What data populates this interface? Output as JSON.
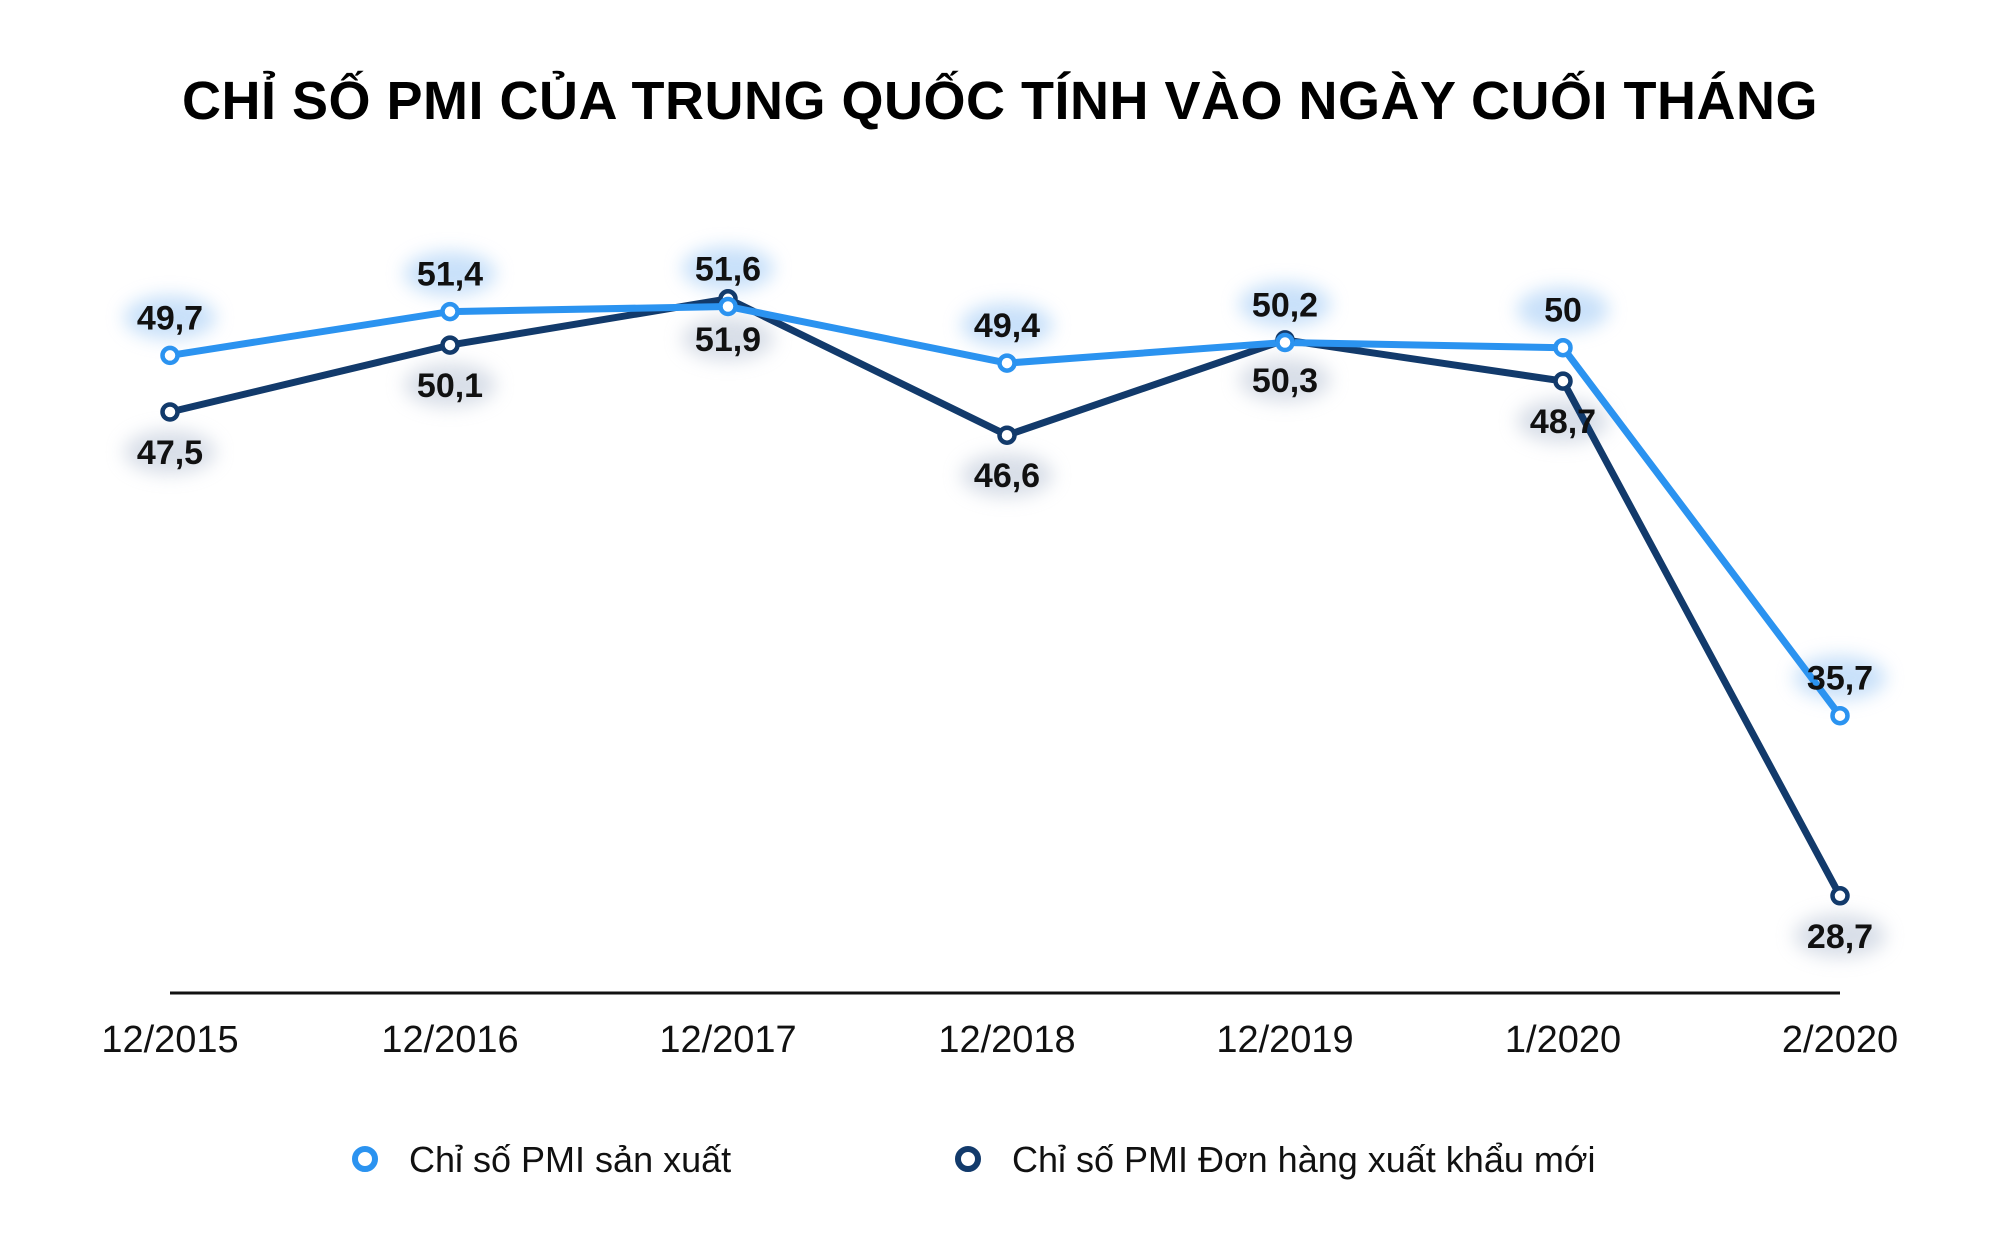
{
  "chart_data": {
    "type": "line",
    "title": "CHỈ SỐ PMI CỦA TRUNG QUỐC TÍNH VÀO NGÀY CUỐI THÁNG",
    "xlabel": "",
    "ylabel": "",
    "categories": [
      "12/2015",
      "12/2016",
      "12/2017",
      "12/2018",
      "12/2019",
      "1/2020",
      "2/2020"
    ],
    "ylim": [
      25,
      55
    ],
    "grid": false,
    "legend_position": "bottom",
    "series": [
      {
        "name": "Chỉ số PMI sản xuất",
        "color": "#2b93f0",
        "values": [
          49.7,
          51.4,
          51.6,
          49.4,
          50.2,
          50,
          35.7
        ],
        "labels": [
          "49,7",
          "51,4",
          "51,6",
          "49,4",
          "50,2",
          "50",
          "35,7"
        ],
        "label_side": [
          "above",
          "above",
          "above",
          "above",
          "above",
          "above",
          "above"
        ]
      },
      {
        "name": "Chỉ số PMI Đơn hàng xuất khẩu mới",
        "color": "#123a6b",
        "values": [
          47.5,
          50.1,
          51.9,
          46.6,
          50.3,
          48.7,
          28.7
        ],
        "labels": [
          "47,5",
          "50,1",
          "51,9",
          "46,6",
          "50,3",
          "48,7",
          "28,7"
        ],
        "label_side": [
          "below",
          "below",
          "below",
          "below",
          "below",
          "below",
          "below"
        ]
      }
    ]
  }
}
